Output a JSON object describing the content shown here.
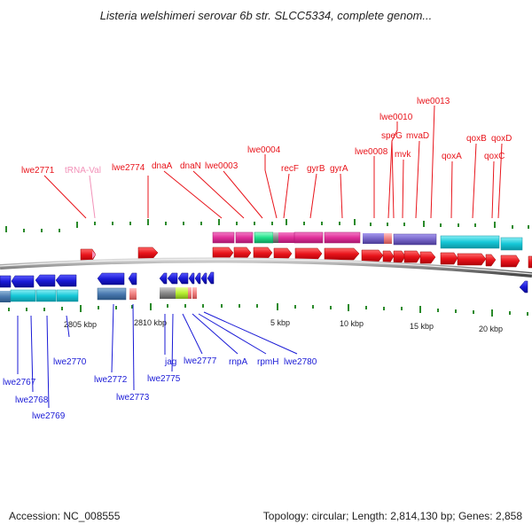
{
  "title": "Listeria welshimeri serovar 6b str. SLCC5334, complete genom...",
  "accession_text": "Accession: NC_008555",
  "topology_text": "Topology: circular; Length: 2,814,130 bp; Genes: 2,858",
  "top_labels": [
    "lwe2771",
    "tRNA-Val",
    "lwe2774",
    "dnaA",
    "dnaN",
    "lwe0003",
    "lwe0004",
    "recF",
    "gyrB",
    "gyrA",
    "lwe0008",
    "speG",
    "lwe0010",
    "mvaD",
    "mvk",
    "lwe0013",
    "qoxA",
    "qoxB",
    "qoxD",
    "qoxC"
  ],
  "bottom_labels": [
    "lwe2767",
    "lwe2768",
    "lwe2769",
    "lwe2770",
    "lwe2772",
    "lwe2773",
    "jag",
    "lwe2775",
    "lwe2777",
    "rnpA",
    "rpmH",
    "lwe2780"
  ],
  "scale_labels": [
    "2805 kbp",
    "2810 kbp",
    "5 kbp",
    "10 kbp",
    "15 kbp",
    "20 kbp"
  ],
  "colors": {
    "forward_gene": "#e8141b",
    "reverse_gene": "#1a1ad6",
    "trna": "#f291b8",
    "magenta_feature": "#e0309a",
    "cyan_feature": "#16c8d8",
    "purple_feature": "#7766c8",
    "tick": "#2a8a2a"
  }
}
